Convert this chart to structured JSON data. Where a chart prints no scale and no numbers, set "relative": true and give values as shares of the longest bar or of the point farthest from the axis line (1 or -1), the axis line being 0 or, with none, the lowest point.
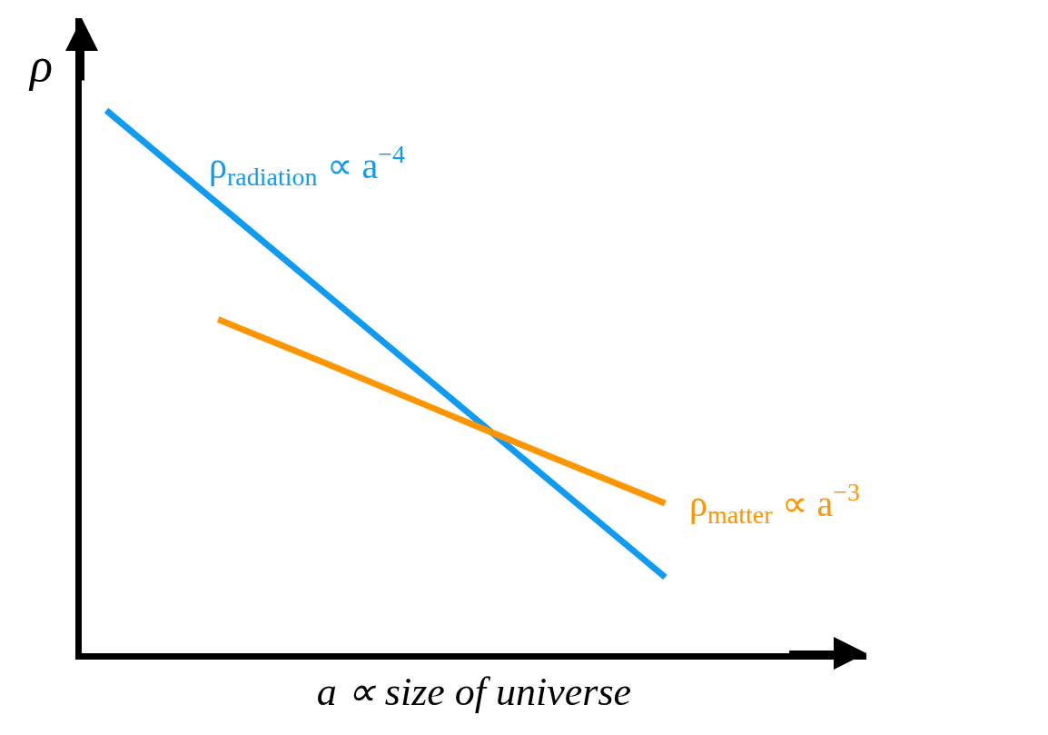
{
  "chart_data": {
    "type": "line",
    "relative": true,
    "xlabel": "a ∝ size of universe",
    "ylabel": "ρ",
    "categories": [
      null,
      null,
      null,
      null,
      null,
      null
    ],
    "series": [
      {
        "name": "ρ$_{radiation}$ ∝ a$^{−4}$",
        "color": "#0f9bf2",
        "values": [
          1,
          0.828,
          0.656,
          0.484,
          0.312,
          0.14
        ]
      },
      {
        "name": "ρ$_{matter}$ ∝ a$^{−3}$",
        "color": "#ff9500",
        "values": [
          null,
          0.615,
          0.531,
          0.445,
          0.36,
          0.276
        ]
      }
    ],
    "legend": false,
    "marker": "none",
    "line_style": "solid"
  }
}
